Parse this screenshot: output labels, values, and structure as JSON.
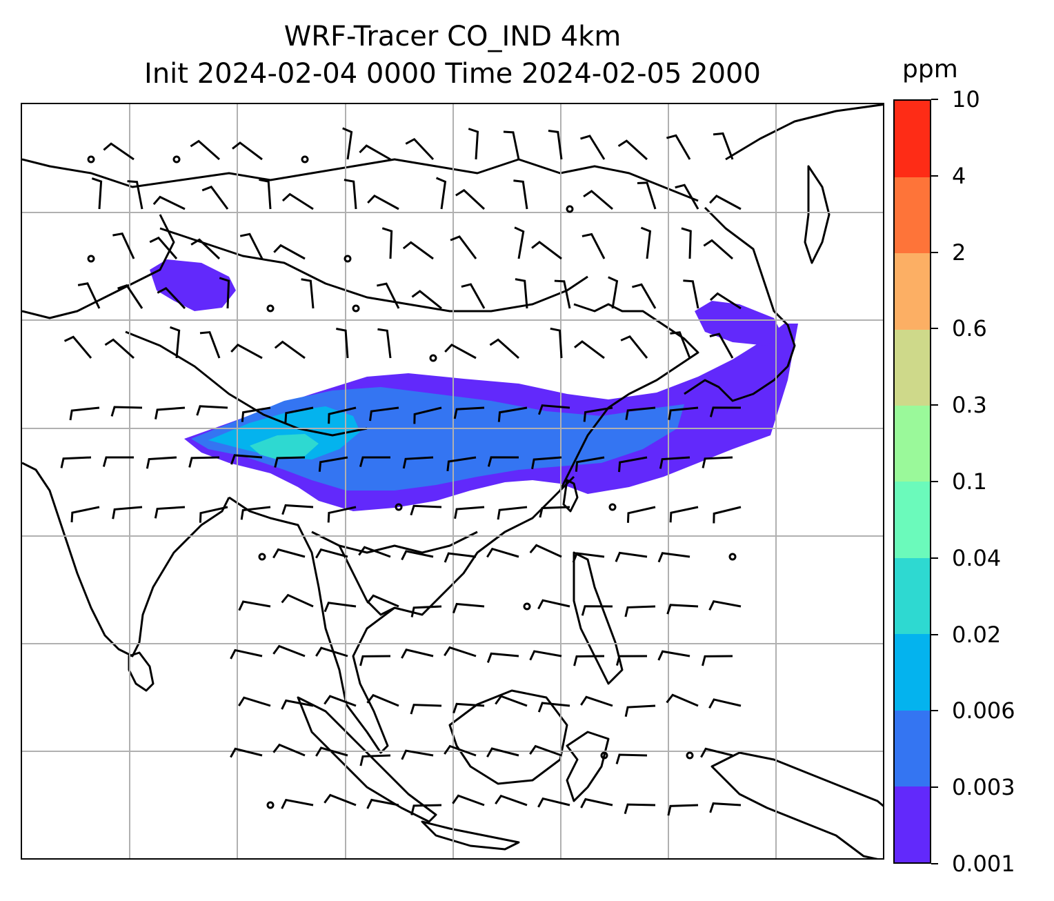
{
  "title": {
    "line1": "WRF-Tracer CO_IND 4km",
    "line2": "Init 2024-02-04 0000 Time 2024-02-05 2000"
  },
  "colorbar": {
    "unit": "ppm",
    "levels": [
      "0.001",
      "0.003",
      "0.006",
      "0.02",
      "0.04",
      "0.1",
      "0.3",
      "0.6",
      "2",
      "4",
      "10"
    ],
    "colors": [
      "#6229fb",
      "#3475f2",
      "#04b3ee",
      "#2ed9d1",
      "#6bfabb",
      "#9af99a",
      "#ced98a",
      "#fcaf64",
      "#fe7439",
      "#fe2c16"
    ]
  },
  "map": {
    "gridlines": true,
    "coastlines": true,
    "country_borders": true,
    "wind_barbs": true,
    "field": "CO_IND tracer concentration"
  }
}
